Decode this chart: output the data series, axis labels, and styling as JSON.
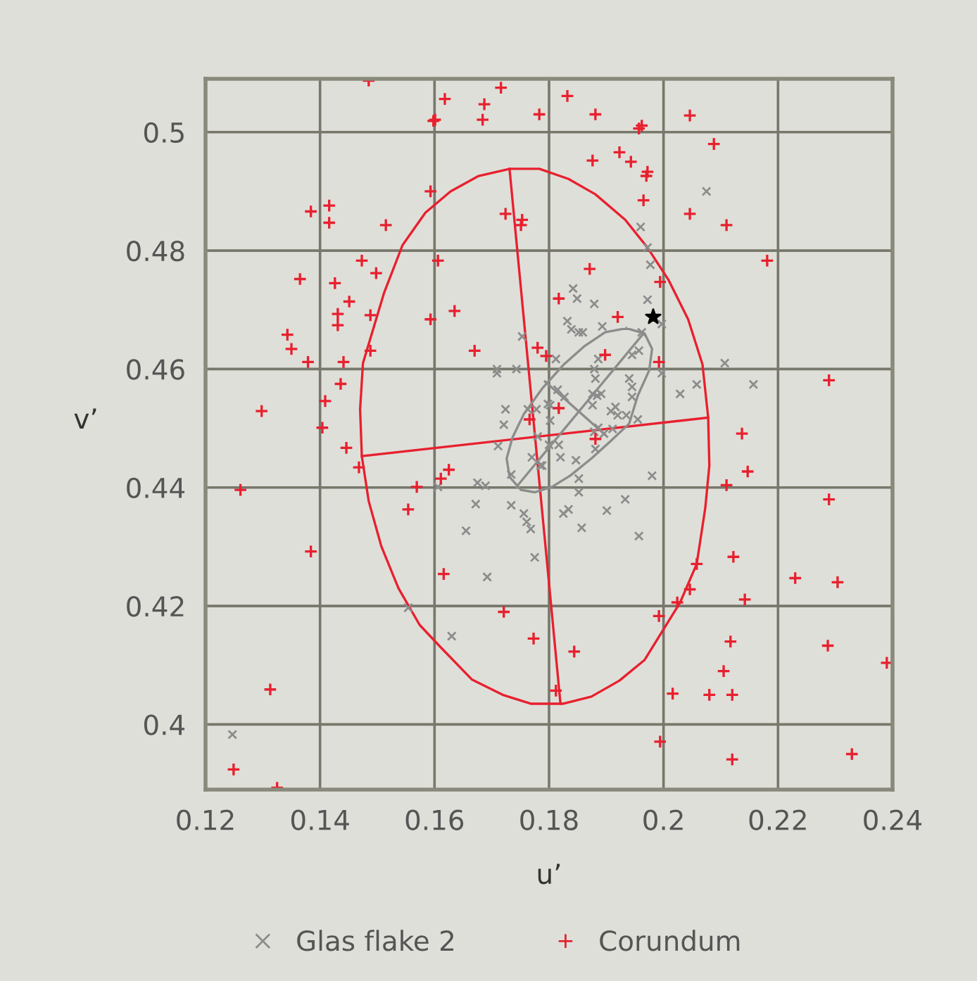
{
  "chart_data": {
    "type": "scatter",
    "xlabel": "u’",
    "ylabel": "v’",
    "xlim": [
      0.12,
      0.24
    ],
    "ylim": [
      0.389,
      0.509
    ],
    "xticks": [
      0.12,
      0.14,
      0.16,
      0.18,
      0.2,
      0.22,
      0.24
    ],
    "yticks": [
      0.4,
      0.42,
      0.44,
      0.46,
      0.48,
      0.5
    ],
    "grid": true,
    "legend": "bottom",
    "series": [
      {
        "name": "Glas flake 2",
        "marker": "cross",
        "color": "#8c8c8c",
        "x": [
          0.2075,
          0.196,
          0.1972,
          0.1977,
          0.1972,
          0.1842,
          0.1849,
          0.1879,
          0.1832,
          0.1839,
          0.1852,
          0.1859,
          0.1893,
          0.1962,
          0.1997,
          0.1812,
          0.1945,
          0.1957,
          0.1886,
          0.1879,
          0.1881,
          0.194,
          0.1945,
          0.1945,
          0.1997,
          0.2107,
          0.2058,
          0.2157,
          0.2029,
          0.1876,
          0.1884,
          0.1891,
          0.1876,
          0.1815,
          0.1827,
          0.1798,
          0.1802,
          0.1908,
          0.1916,
          0.192,
          0.1935,
          0.1955,
          0.1802,
          0.1778,
          0.1886,
          0.1879,
          0.1896,
          0.1911,
          0.1881,
          0.1817,
          0.18,
          0.178,
          0.1785,
          0.182,
          0.1847,
          0.1852,
          0.1852,
          0.198,
          0.1933,
          0.1901,
          0.1825,
          0.1834,
          0.1857,
          0.1957,
          0.1775,
          0.1721,
          0.1711,
          0.177,
          0.1788,
          0.1734,
          0.1675,
          0.1689,
          0.1606,
          0.1672,
          0.1734,
          0.1756,
          0.1761,
          0.1768,
          0.1655,
          0.1692,
          0.1554,
          0.163,
          0.1247,
          0.1753,
          0.1709,
          0.1709,
          0.1743,
          0.1724,
          0.1763
        ],
        "values": [
          0.49,
          0.484,
          0.4805,
          0.4776,
          0.4717,
          0.4736,
          0.4719,
          0.471,
          0.4681,
          0.4667,
          0.4662,
          0.4662,
          0.4672,
          0.4662,
          0.4676,
          0.4617,
          0.4624,
          0.4631,
          0.4617,
          0.46,
          0.4584,
          0.4584,
          0.457,
          0.4553,
          0.4593,
          0.461,
          0.4574,
          0.4574,
          0.4558,
          0.4558,
          0.4555,
          0.4558,
          0.4539,
          0.4565,
          0.4553,
          0.4541,
          0.4539,
          0.4529,
          0.4536,
          0.4522,
          0.4522,
          0.4515,
          0.4513,
          0.4532,
          0.4501,
          0.4494,
          0.4491,
          0.4499,
          0.4465,
          0.4472,
          0.4472,
          0.4486,
          0.4437,
          0.4451,
          0.4446,
          0.4415,
          0.4392,
          0.442,
          0.438,
          0.4361,
          0.4356,
          0.4363,
          0.4332,
          0.4318,
          0.4282,
          0.4506,
          0.447,
          0.4451,
          0.4437,
          0.4422,
          0.4408,
          0.4403,
          0.4401,
          0.4372,
          0.437,
          0.4356,
          0.4342,
          0.433,
          0.4327,
          0.4249,
          0.4197,
          0.4149,
          0.3983,
          0.4655,
          0.46,
          0.4593,
          0.46,
          0.4532,
          0.4532
        ]
      },
      {
        "name": "Corundum",
        "marker": "plus",
        "color": "#e8202e",
        "x": [
          0.1485,
          0.1618,
          0.1601,
          0.1598,
          0.1687,
          0.1684,
          0.1716,
          0.1783,
          0.1832,
          0.1881,
          0.1962,
          0.1957,
          0.2046,
          0.2088,
          0.1876,
          0.1923,
          0.1943,
          0.1972,
          0.197,
          0.1965,
          0.2046,
          0.211,
          0.2181,
          0.1871,
          0.1994,
          0.1817,
          0.192,
          0.178,
          0.1795,
          0.1898,
          0.1992,
          0.2289,
          0.2137,
          0.1817,
          0.2147,
          0.211,
          0.2289,
          0.1881,
          0.2122,
          0.2058,
          0.223,
          0.2304,
          0.2046,
          0.2024,
          0.2142,
          0.1992,
          0.1844,
          0.2117,
          0.2287,
          0.239,
          0.2105,
          0.1812,
          0.2016,
          0.208,
          0.212,
          0.1994,
          0.212,
          0.2329,
          0.1404,
          0.1446,
          0.1468,
          0.1261,
          0.1569,
          0.1611,
          0.1625,
          0.1554,
          0.1384,
          0.1616,
          0.1721,
          0.1773,
          0.1313,
          0.1249,
          0.1325,
          0.1384,
          0.1416,
          0.1416,
          0.1515,
          0.1593,
          0.1473,
          0.1498,
          0.1365,
          0.1426,
          0.1451,
          0.1431,
          0.1488,
          0.1431,
          0.1593,
          0.1635,
          0.1343,
          0.135,
          0.1379,
          0.1441,
          0.1488,
          0.167,
          0.1724,
          0.1753,
          0.1751,
          0.1606,
          0.1436,
          0.1409,
          0.1298,
          0.1766
        ],
        "values": [
          0.5087,
          0.5056,
          0.5021,
          0.5019,
          0.5047,
          0.5021,
          0.5075,
          0.503,
          0.5061,
          0.503,
          0.5011,
          0.5006,
          0.5028,
          0.498,
          0.4952,
          0.4966,
          0.495,
          0.4933,
          0.4926,
          0.4885,
          0.4862,
          0.4843,
          0.4783,
          0.4769,
          0.4747,
          0.4719,
          0.4688,
          0.4636,
          0.4622,
          0.4624,
          0.4612,
          0.4581,
          0.4491,
          0.4534,
          0.4427,
          0.4404,
          0.438,
          0.4482,
          0.4283,
          0.4271,
          0.4247,
          0.424,
          0.4228,
          0.4206,
          0.4211,
          0.4183,
          0.4123,
          0.414,
          0.4133,
          0.4104,
          0.409,
          0.4057,
          0.4052,
          0.405,
          0.405,
          0.3971,
          0.3941,
          0.395,
          0.4501,
          0.4467,
          0.4434,
          0.4396,
          0.4401,
          0.4415,
          0.443,
          0.4363,
          0.4292,
          0.4254,
          0.419,
          0.4145,
          0.4059,
          0.3924,
          0.3893,
          0.4866,
          0.4876,
          0.4847,
          0.4843,
          0.49,
          0.4783,
          0.4762,
          0.4752,
          0.4745,
          0.4714,
          0.4693,
          0.4691,
          0.4674,
          0.4684,
          0.4698,
          0.4658,
          0.4634,
          0.4612,
          0.4612,
          0.4631,
          0.4631,
          0.4862,
          0.4852,
          0.4843,
          0.4783,
          0.4575,
          0.4546,
          0.4529,
          0.4515
        ]
      },
      {
        "marker": "star",
        "color": "#000000",
        "x": [
          0.1982
        ],
        "values": [
          0.4688
        ]
      },
      {
        "type": "line",
        "color": "#e8202e",
        "x": [
          0.1731,
          0.182
        ],
        "values": [
          0.4938,
          0.4035
        ]
      },
      {
        "type": "line",
        "color": "#e8202e",
        "x": [
          0.1473,
          0.2078
        ],
        "values": [
          0.4453,
          0.4518
        ]
      },
      {
        "type": "line",
        "color": "#8c8c8c",
        "x": [
          0.1965,
          0.1743
        ],
        "values": [
          0.466,
          0.4401
        ]
      },
      {
        "type": "line",
        "color": "#8c8c8c",
        "x": [
          0.1793,
          0.1898
        ],
        "values": [
          0.4579,
          0.4489
        ]
      }
    ]
  }
}
